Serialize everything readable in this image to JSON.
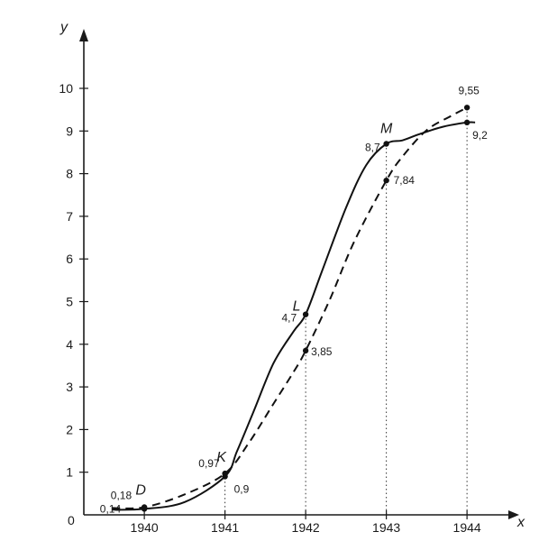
{
  "chart_data": {
    "type": "line",
    "xlabel": "x",
    "ylabel": "y",
    "origin_label": "0",
    "xlim": [
      1939.25,
      1944.7
    ],
    "ylim": [
      0,
      11
    ],
    "x_ticks": [
      1940,
      1941,
      1942,
      1943,
      1944
    ],
    "x_tick_labels": [
      "1940",
      "1941",
      "1942",
      "1943",
      "1944"
    ],
    "y_ticks": [
      1,
      2,
      3,
      4,
      5,
      6,
      7,
      8,
      9,
      10
    ],
    "y_tick_labels": [
      "1",
      "2",
      "3",
      "4",
      "5",
      "6",
      "7",
      "8",
      "9",
      "10"
    ],
    "grid": false,
    "guide_lines_x": [
      1941,
      1942,
      1943,
      1944
    ],
    "series": [
      {
        "style": "solid",
        "x": [
          1940,
          1941,
          1942,
          1943,
          1944
        ],
        "y": [
          0.14,
          0.9,
          4.7,
          8.7,
          9.2
        ],
        "point_labels": [
          "0,14",
          "0,9",
          "4,7",
          "8,7",
          "9,2"
        ],
        "curve": {
          "x": [
            1939.6,
            1940,
            1940.5,
            1941,
            1941.15,
            1941.35,
            1941.6,
            1941.85,
            1942,
            1942.2,
            1942.5,
            1942.75,
            1943,
            1943.2,
            1943.4,
            1943.7,
            1944,
            1944.1
          ],
          "y": [
            0.12,
            0.14,
            0.3,
            0.9,
            1.5,
            2.4,
            3.55,
            4.3,
            4.7,
            5.7,
            7.2,
            8.2,
            8.7,
            8.78,
            8.92,
            9.1,
            9.2,
            9.2
          ]
        }
      },
      {
        "style": "dashed",
        "x": [
          1940,
          1941,
          1942,
          1943,
          1944
        ],
        "y": [
          0.18,
          0.97,
          3.85,
          7.84,
          9.55
        ],
        "point_labels": [
          "0,18",
          "0,97",
          "3,85",
          "7,84",
          "9,55"
        ],
        "curve": {
          "x": [
            1939.6,
            1940,
            1940.5,
            1941,
            1941.3,
            1941.6,
            1941.85,
            1942,
            1942.3,
            1942.6,
            1943,
            1943.2,
            1943.5,
            1943.8,
            1944
          ],
          "y": [
            0.16,
            0.18,
            0.48,
            0.97,
            1.7,
            2.6,
            3.35,
            3.85,
            5.05,
            6.4,
            7.84,
            8.4,
            9.02,
            9.35,
            9.55
          ]
        }
      }
    ],
    "named_points": [
      {
        "name": "D",
        "x": 1940,
        "y": 0.18
      },
      {
        "name": "K",
        "x": 1941,
        "y": 0.97
      },
      {
        "name": "L",
        "x": 1942,
        "y": 4.7
      },
      {
        "name": "M",
        "x": 1943,
        "y": 8.7
      }
    ]
  }
}
